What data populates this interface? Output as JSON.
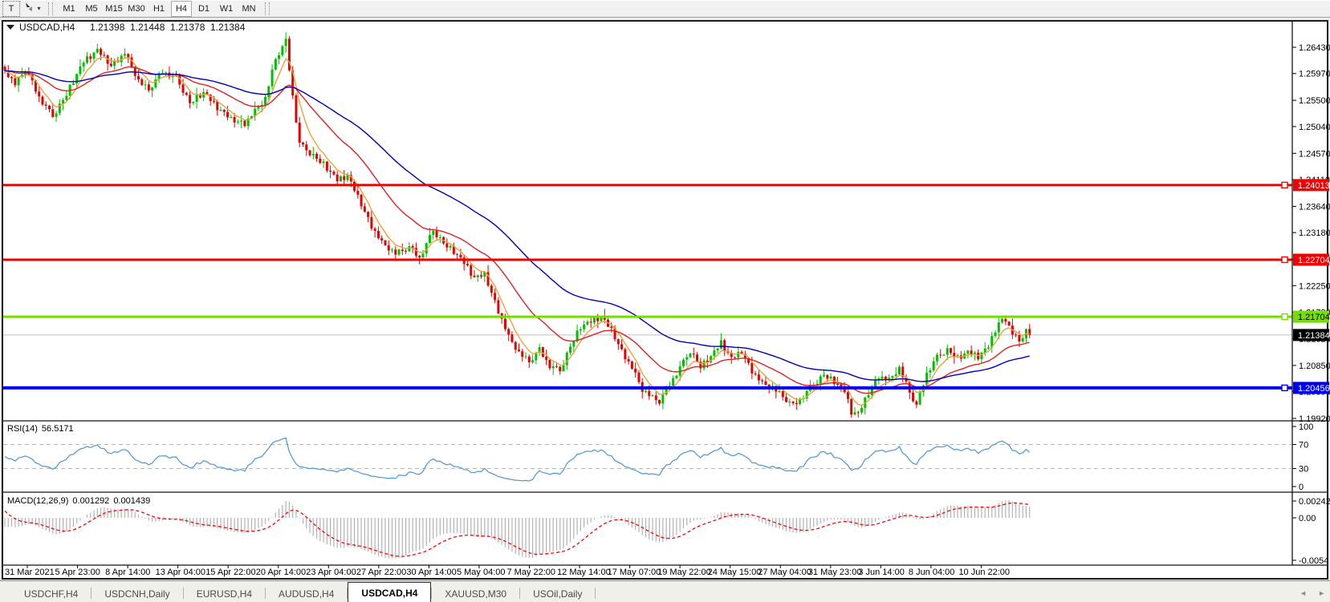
{
  "toolbar": {
    "text_tool_label": "T",
    "dropdown_caret": "▾",
    "timeframes": [
      "M1",
      "M5",
      "M15",
      "M30",
      "H1",
      "H4",
      "D1",
      "W1",
      "MN"
    ],
    "active_timeframe": "H4"
  },
  "tabs": {
    "items": [
      "USDCHF,H4",
      "USDCNH,Daily",
      "EURUSD,H4",
      "AUDUSD,H4",
      "USDCAD,H4",
      "XAUUSD,M30",
      "USOil,Daily"
    ],
    "active": "USDCAD,H4"
  },
  "scroll": {
    "left_arrow": "◄",
    "right_arrow": "►"
  },
  "chart_data": {
    "type": "candlestick",
    "symbol": "USDCAD",
    "timeframe": "H4",
    "title_symbol": "USDCAD,H4",
    "ohlc_display": {
      "open": "1.21398",
      "high": "1.21448",
      "low": "1.21378",
      "close": "1.21384"
    },
    "y_axis_ticks": [
      "1.26430",
      "1.25970",
      "1.25500",
      "1.25040",
      "1.24570",
      "1.24110",
      "1.23640",
      "1.23180",
      "1.22710",
      "1.22250",
      "1.21780",
      "1.21320",
      "1.20850",
      "1.20390",
      "1.19920"
    ],
    "x_axis_ticks": [
      "31 Mar 2021",
      "5 Apr 23:00",
      "8 Apr 14:00",
      "13 Apr 04:00",
      "15 Apr 22:00",
      "20 Apr 14:00",
      "23 Apr 04:00",
      "27 Apr 22:00",
      "30 Apr 14:00",
      "5 May 04:00",
      "7 May 22:00",
      "12 May 14:00",
      "17 May 07:00",
      "19 May 22:00",
      "24 May 15:00",
      "27 May 04:00",
      "31 May 23:00",
      "3 Jun 14:00",
      "8 Jun 04:00",
      "10 Jun 22:00"
    ],
    "price_lines": [
      {
        "value": 1.24013,
        "label": "1.24013",
        "color": "#f40000",
        "text_color": "#ffffff",
        "width": 3
      },
      {
        "value": 1.22704,
        "label": "1.22704",
        "color": "#f40000",
        "text_color": "#ffffff",
        "width": 3
      },
      {
        "value": 1.21704,
        "label": "1.21704",
        "color": "#74dd00",
        "text_color": "#000000",
        "width": 3
      },
      {
        "value": 1.20456,
        "label": "1.20456",
        "color": "#0000f0",
        "text_color": "#ffffff",
        "width": 4
      }
    ],
    "bid_line": {
      "value": 1.21384,
      "label": "1.21384",
      "line_color": "#c0c0c0",
      "label_bg": "#000000",
      "text_color": "#ffffff"
    },
    "candles": {
      "count": 300,
      "up_color": "#00c000",
      "down_color": "#e60000",
      "close_anchors": [
        [
          0,
          1.2602
        ],
        [
          3,
          1.2578
        ],
        [
          6,
          1.2604
        ],
        [
          10,
          1.2556
        ],
        [
          14,
          1.2522
        ],
        [
          18,
          1.256
        ],
        [
          23,
          1.2618
        ],
        [
          27,
          1.2638
        ],
        [
          31,
          1.261
        ],
        [
          35,
          1.2632
        ],
        [
          39,
          1.2584
        ],
        [
          42,
          1.2568
        ],
        [
          46,
          1.2601
        ],
        [
          50,
          1.259
        ],
        [
          54,
          1.2545
        ],
        [
          58,
          1.2563
        ],
        [
          62,
          1.2538
        ],
        [
          66,
          1.2516
        ],
        [
          70,
          1.2509
        ],
        [
          73,
          1.253
        ],
        [
          76,
          1.2553
        ],
        [
          79,
          1.2623
        ],
        [
          82,
          1.2653
        ],
        [
          84,
          1.2558
        ],
        [
          86,
          1.2474
        ],
        [
          89,
          1.2458
        ],
        [
          93,
          1.2437
        ],
        [
          97,
          1.241
        ],
        [
          100,
          1.2418
        ],
        [
          104,
          1.2367
        ],
        [
          107,
          1.2329
        ],
        [
          110,
          1.2299
        ],
        [
          114,
          1.2281
        ],
        [
          118,
          1.2292
        ],
        [
          121,
          1.2274
        ],
        [
          125,
          1.2322
        ],
        [
          128,
          1.2299
        ],
        [
          131,
          1.2284
        ],
        [
          134,
          1.2265
        ],
        [
          137,
          1.2239
        ],
        [
          140,
          1.2244
        ],
        [
          143,
          1.2196
        ],
        [
          147,
          1.2134
        ],
        [
          150,
          1.2107
        ],
        [
          153,
          1.2091
        ],
        [
          156,
          1.2112
        ],
        [
          159,
          1.2085
        ],
        [
          162,
          1.2076
        ],
        [
          165,
          1.2118
        ],
        [
          168,
          1.2152
        ],
        [
          171,
          1.2162
        ],
        [
          174,
          1.2171
        ],
        [
          177,
          1.2146
        ],
        [
          180,
          1.211
        ],
        [
          183,
          1.208
        ],
        [
          186,
          1.2042
        ],
        [
          189,
          1.2028
        ],
        [
          191,
          1.2022
        ],
        [
          194,
          1.2052
        ],
        [
          197,
          1.2082
        ],
        [
          200,
          1.211
        ],
        [
          203,
          1.2082
        ],
        [
          206,
          1.21
        ],
        [
          209,
          1.2125
        ],
        [
          212,
          1.2097
        ],
        [
          215,
          1.2108
        ],
        [
          218,
          1.2075
        ],
        [
          221,
          1.2052
        ],
        [
          224,
          1.2046
        ],
        [
          227,
          1.203
        ],
        [
          230,
          1.2014
        ],
        [
          233,
          1.2032
        ],
        [
          236,
          1.2052
        ],
        [
          239,
          1.2068
        ],
        [
          242,
          1.2056
        ],
        [
          245,
          1.204
        ],
        [
          247,
          1.2004
        ],
        [
          249,
          1.2
        ],
        [
          252,
          1.2036
        ],
        [
          255,
          1.2066
        ],
        [
          258,
          1.2058
        ],
        [
          261,
          1.208
        ],
        [
          264,
          1.2038
        ],
        [
          266,
          1.2014
        ],
        [
          269,
          1.2072
        ],
        [
          272,
          1.21
        ],
        [
          275,
          1.2112
        ],
        [
          278,
          1.2097
        ],
        [
          281,
          1.2108
        ],
        [
          284,
          1.2101
        ],
        [
          287,
          1.2118
        ],
        [
          290,
          1.216
        ],
        [
          292,
          1.2166
        ],
        [
          294,
          1.214
        ],
        [
          296,
          1.2126
        ],
        [
          298,
          1.2146
        ],
        [
          299,
          1.21384
        ]
      ],
      "noise": [
        0.2,
        -0.6,
        0.5,
        -0.3,
        0.8,
        -0.1,
        -0.7,
        0.4,
        0.9,
        -0.5,
        0.1,
        -0.9,
        0.3,
        0.7,
        -0.2,
        -0.8,
        0.6,
        0.0,
        -0.4,
        1.0,
        -0.65,
        0.25,
        0.55,
        -0.35,
        0.75,
        -0.95,
        0.15,
        0.45,
        -0.25,
        0.85,
        -0.55,
        0.05,
        0.65,
        -0.75,
        0.35,
        -0.15,
        0.95
      ],
      "wick_up": [
        0.4,
        1.1,
        0.2,
        0.7,
        0.1,
        1.4,
        0.35,
        0.85,
        0.55,
        0.15,
        1.0,
        0.3,
        0.65,
        0.2,
        1.2,
        0.5,
        0.8
      ],
      "wick_dn": [
        0.6,
        0.2,
        1.0,
        0.4,
        1.3,
        0.25,
        0.7,
        0.1,
        0.9,
        0.45,
        1.1,
        0.3,
        0.8
      ]
    },
    "moving_averages": [
      {
        "name": "ma-fast",
        "period": 6,
        "color": "#e8a33d"
      },
      {
        "name": "ma-mid",
        "period": 24,
        "color": "#dd2222"
      },
      {
        "name": "ma-slow",
        "period": 58,
        "color": "#0000b2"
      }
    ],
    "rsi": {
      "label": "RSI(14)",
      "value": "56.5171",
      "period": 14,
      "scale": [
        "100",
        "70",
        "30",
        "0"
      ],
      "levels": [
        70,
        30
      ],
      "color": "#4a96d2"
    },
    "macd": {
      "label": "MACD(12,26,9)",
      "main": "0.001292",
      "signal": "0.001439",
      "fast": 12,
      "slow": 26,
      "signal_period": 9,
      "scale_max": "0.002429",
      "scale_zero": "0.00",
      "scale_min": "-0.0054",
      "hist_color": "#b2b2b2",
      "signal_color": "#ff0000"
    }
  }
}
